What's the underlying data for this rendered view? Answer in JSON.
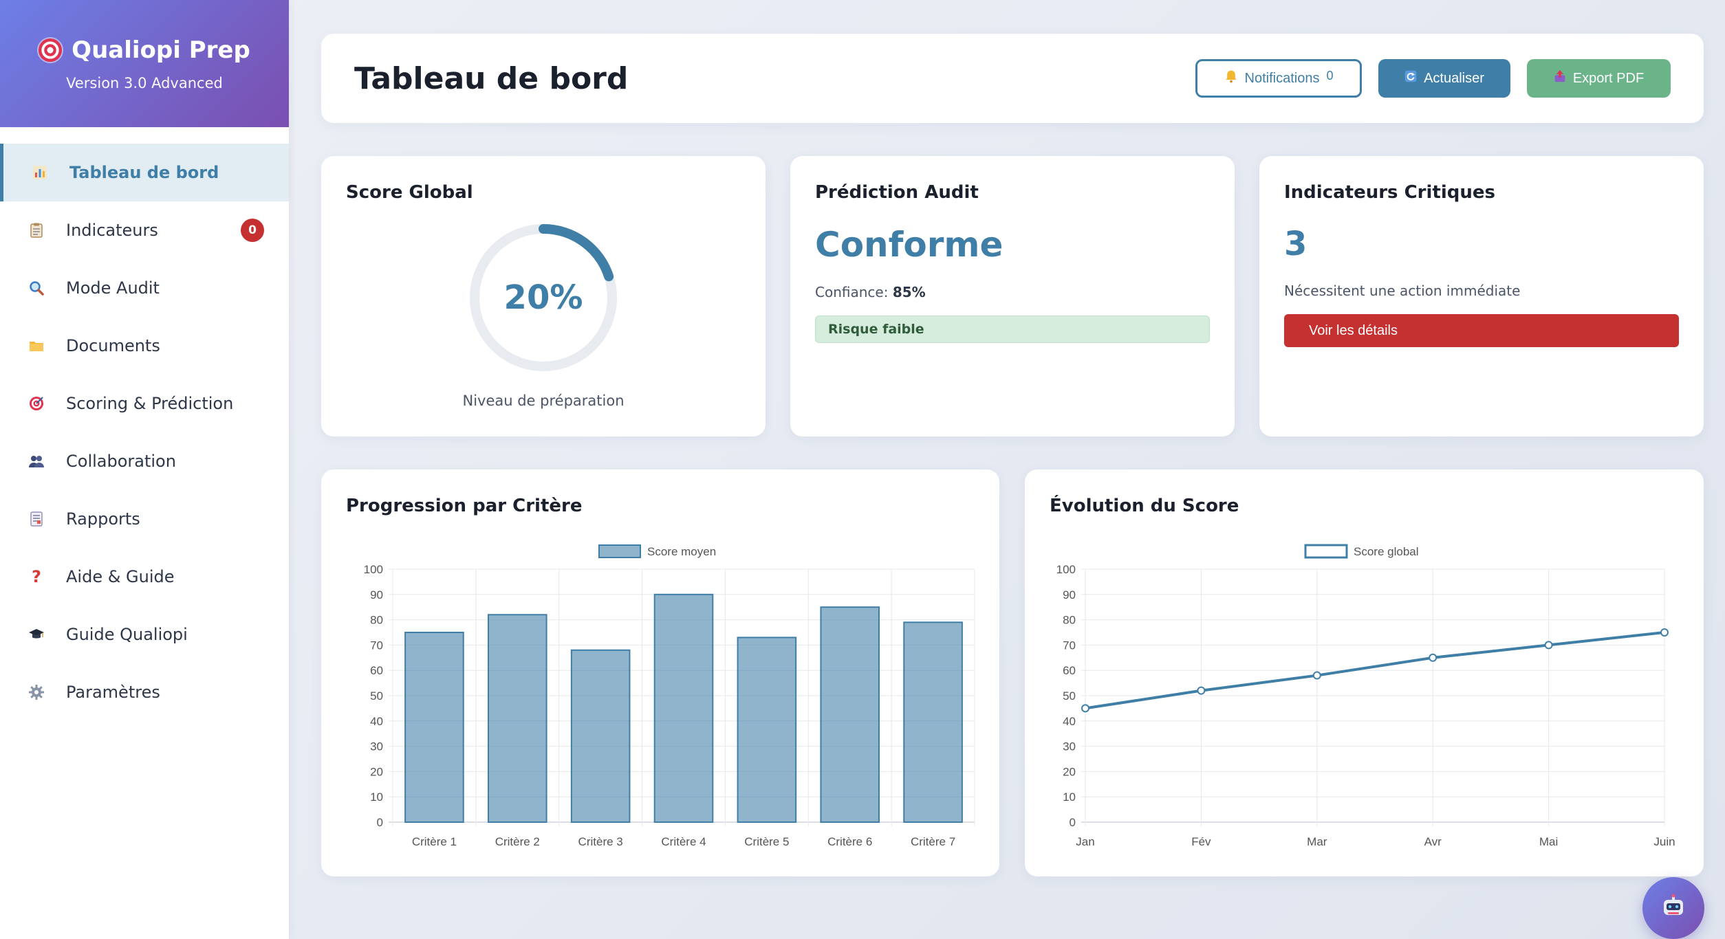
{
  "brand": {
    "title": "Qualiopi Prep",
    "version": "Version 3.0 Advanced"
  },
  "sidebar": {
    "items": [
      {
        "label": "Tableau de bord",
        "icon": "bar-chart-icon",
        "active": true
      },
      {
        "label": "Indicateurs",
        "icon": "clipboard-icon",
        "badge": "0"
      },
      {
        "label": "Mode Audit",
        "icon": "magnifier-icon"
      },
      {
        "label": "Documents",
        "icon": "folder-icon"
      },
      {
        "label": "Scoring & Prédiction",
        "icon": "target-icon"
      },
      {
        "label": "Collaboration",
        "icon": "people-icon"
      },
      {
        "label": "Rapports",
        "icon": "report-icon"
      },
      {
        "label": "Aide & Guide",
        "icon": "question-icon"
      },
      {
        "label": "Guide Qualiopi",
        "icon": "graduation-cap-icon"
      },
      {
        "label": "Paramètres",
        "icon": "gear-icon"
      }
    ]
  },
  "header": {
    "title": "Tableau de bord",
    "notifications_label": "Notifications",
    "notifications_count": "0",
    "refresh_label": "Actualiser",
    "export_label": "Export PDF"
  },
  "score_card": {
    "title": "Score Global",
    "value": "20%",
    "percent": 20,
    "caption": "Niveau de préparation"
  },
  "prediction_card": {
    "title": "Prédiction Audit",
    "status": "Conforme",
    "confidence_label": "Confiance:",
    "confidence_value": "85%",
    "risk": "Risque faible"
  },
  "critical_card": {
    "title": "Indicateurs Critiques",
    "count": "3",
    "description": "Nécessitent une action immédiate",
    "button": "Voir les détails"
  },
  "colors": {
    "primary": "#3f7ea6",
    "success": "#6bb389",
    "danger": "#c53030",
    "brand_start": "#6d7fe6",
    "brand_end": "#7a4fb0"
  },
  "chart_data": [
    {
      "type": "bar",
      "title": "Progression par Critère",
      "categories": [
        "Critère 1",
        "Critère 2",
        "Critère 3",
        "Critère 4",
        "Critère 5",
        "Critère 6",
        "Critère 7"
      ],
      "series": [
        {
          "name": "Score moyen",
          "values": [
            75,
            82,
            68,
            90,
            73,
            85,
            79
          ]
        }
      ],
      "ylim": [
        0,
        100
      ],
      "yticks": [
        0,
        10,
        20,
        30,
        40,
        50,
        60,
        70,
        80,
        90,
        100
      ],
      "grid": true,
      "legend": "top-center"
    },
    {
      "type": "line",
      "title": "Évolution du Score",
      "categories": [
        "Jan",
        "Fév",
        "Mar",
        "Avr",
        "Mai",
        "Juin"
      ],
      "series": [
        {
          "name": "Score global",
          "values": [
            45,
            52,
            58,
            65,
            70,
            75
          ]
        }
      ],
      "ylim": [
        0,
        100
      ],
      "yticks": [
        0,
        10,
        20,
        30,
        40,
        50,
        60,
        70,
        80,
        90,
        100
      ],
      "grid": true,
      "legend": "top-center"
    }
  ]
}
